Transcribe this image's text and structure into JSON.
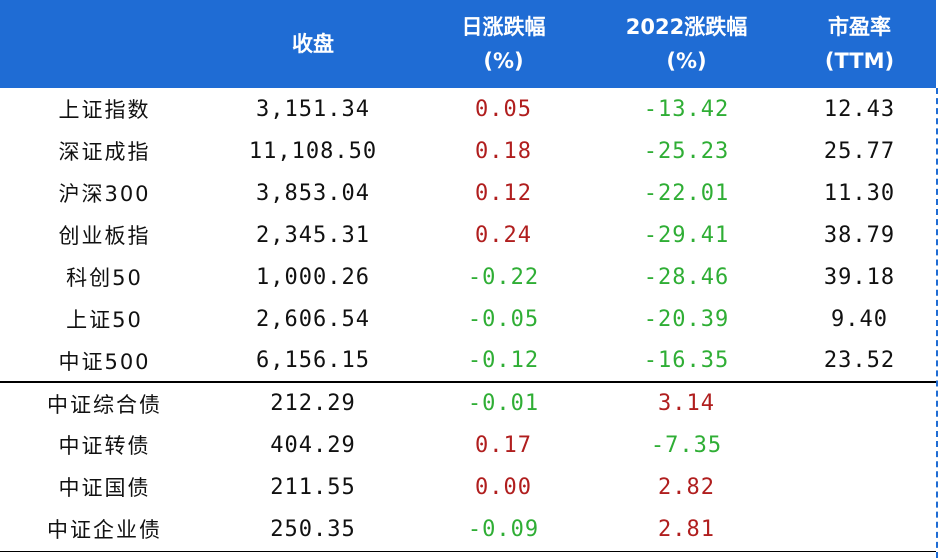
{
  "header": {
    "col0": "",
    "col1": "收盘",
    "col2_l1": "日涨跌幅",
    "col2_l2": "(%)",
    "col3_l1": "2022涨跌幅",
    "col3_l2": "(%)",
    "col4_l1": "市盈率",
    "col4_l2": "(TTM)"
  },
  "rows": [
    {
      "name": "上证指数",
      "close": "3,151.34",
      "daily": "0.05",
      "ytd": "-13.42",
      "pe": "12.43"
    },
    {
      "name": "深证成指",
      "close": "11,108.50",
      "daily": "0.18",
      "ytd": "-25.23",
      "pe": "25.77"
    },
    {
      "name": "沪深300",
      "close": "3,853.04",
      "daily": "0.12",
      "ytd": "-22.01",
      "pe": "11.30"
    },
    {
      "name": "创业板指",
      "close": "2,345.31",
      "daily": "0.24",
      "ytd": "-29.41",
      "pe": "38.79"
    },
    {
      "name": "科创50",
      "close": "1,000.26",
      "daily": "-0.22",
      "ytd": "-28.46",
      "pe": "39.18"
    },
    {
      "name": "上证50",
      "close": "2,606.54",
      "daily": "-0.05",
      "ytd": "-20.39",
      "pe": "9.40"
    },
    {
      "name": "中证500",
      "close": "6,156.15",
      "daily": "-0.12",
      "ytd": "-16.35",
      "pe": "23.52"
    },
    {
      "name": "中证综合债",
      "close": "212.29",
      "daily": "-0.01",
      "ytd": "3.14",
      "pe": ""
    },
    {
      "name": "中证转债",
      "close": "404.29",
      "daily": "0.17",
      "ytd": "-7.35",
      "pe": ""
    },
    {
      "name": "中证国债",
      "close": "211.55",
      "daily": "0.00",
      "ytd": "2.82",
      "pe": ""
    },
    {
      "name": "中证企业债",
      "close": "250.35",
      "daily": "-0.09",
      "ytd": "2.81",
      "pe": ""
    }
  ],
  "colors": {
    "header_bg": "#1f6cd4",
    "header_text": "#ffffff",
    "up": "#b01e1e",
    "down": "#2fae35",
    "text": "#111111"
  }
}
